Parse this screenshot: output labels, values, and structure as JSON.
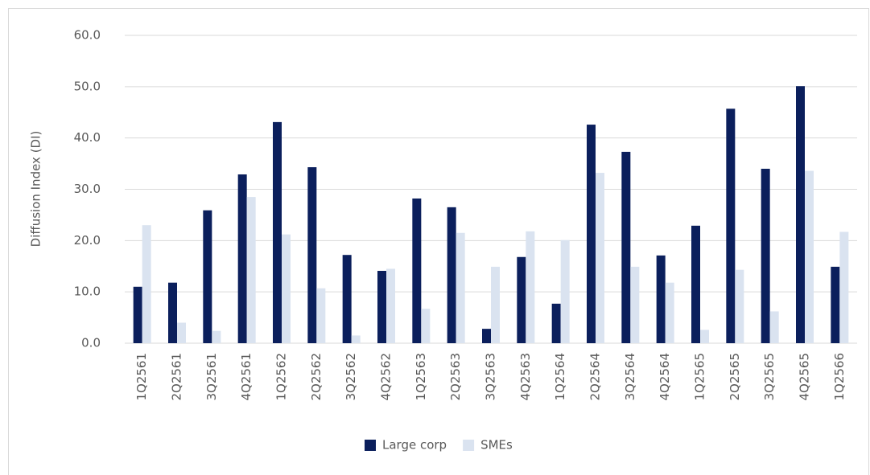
{
  "chart_data": {
    "type": "bar",
    "y_label": "Diffusion Index (DI)",
    "categories": [
      "1Q2561",
      "2Q2561",
      "3Q2561",
      "4Q2561",
      "1Q2562",
      "2Q2562",
      "3Q2562",
      "4Q2562",
      "1Q2563",
      "2Q2563",
      "3Q2563",
      "4Q2563",
      "1Q2564",
      "2Q2564",
      "3Q2564",
      "4Q2564",
      "1Q2565",
      "2Q2565",
      "3Q2565",
      "4Q2565",
      "1Q2566"
    ],
    "series": [
      {
        "name": "Large corp",
        "color": "#0b1f5c",
        "values": [
          11.0,
          11.8,
          25.9,
          32.9,
          43.1,
          34.3,
          17.2,
          14.1,
          28.2,
          26.5,
          2.8,
          16.8,
          7.7,
          42.6,
          37.3,
          17.1,
          22.9,
          45.7,
          34.0,
          50.1,
          14.9
        ]
      },
      {
        "name": "SMEs",
        "color": "#dae3f0",
        "values": [
          23.0,
          4.0,
          2.4,
          28.5,
          21.2,
          10.7,
          1.5,
          14.5,
          6.7,
          21.5,
          14.9,
          21.8,
          20.1,
          33.2,
          14.9,
          11.8,
          2.6,
          14.3,
          6.2,
          33.6,
          21.7
        ]
      }
    ],
    "ylim": [
      0,
      60
    ],
    "yticks": [
      {
        "value": 0,
        "label": "0.0"
      },
      {
        "value": 10,
        "label": "10.0"
      },
      {
        "value": 20,
        "label": "20.0"
      },
      {
        "value": 30,
        "label": "30.0"
      },
      {
        "value": 40,
        "label": "40.0"
      },
      {
        "value": 50,
        "label": "50.0"
      },
      {
        "value": 60,
        "label": "60.0"
      }
    ],
    "grid": true,
    "legend": "bottom"
  }
}
